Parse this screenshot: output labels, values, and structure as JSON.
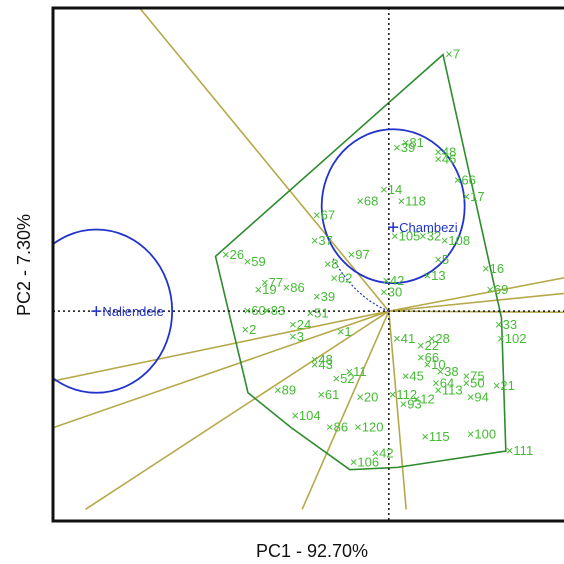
{
  "chart_data": {
    "type": "scatter",
    "subtype": "GGE biplot (which-won-where polygon view)",
    "title": "",
    "xlabel": "PC1 - 92.70%",
    "ylabel": "PC2 - 7.30%",
    "xlim": [
      -15.5,
      8.5
    ],
    "ylim": [
      -9.0,
      13.0
    ],
    "grid": false,
    "origin_lines": "dotted",
    "colors": {
      "genotype": "#44bb33",
      "environment": "#2233cc",
      "polygon": "#2e8b2e",
      "rays": "#b5a94a",
      "circle": "#2233cc",
      "axes": "#111111"
    },
    "environments": [
      {
        "name": "Naliendele",
        "x": -13.5,
        "y": 0.0
      },
      {
        "name": "Chambezi",
        "x": 0.2,
        "y": 3.6
      }
    ],
    "circles": [
      {
        "cx": -13.5,
        "cy": 0.0,
        "r": 3.5
      },
      {
        "cx": 0.2,
        "cy": 4.5,
        "r": 3.3
      }
    ],
    "polygon": [
      {
        "x": -8.0,
        "y": 2.35
      },
      {
        "x": 2.5,
        "y": 11.0
      },
      {
        "x": 5.2,
        "y": -0.3
      },
      {
        "x": 5.4,
        "y": -6.0
      },
      {
        "x": 0.4,
        "y": -6.7
      },
      {
        "x": -1.8,
        "y": -6.8
      },
      {
        "x": -4.5,
        "y": -5.0
      },
      {
        "x": -6.5,
        "y": -3.5
      }
    ],
    "rays_end": [
      {
        "x": -11.5,
        "y": 13.0
      },
      {
        "x": 8.5,
        "y": 1.5
      },
      {
        "x": 8.5,
        "y": 0.8
      },
      {
        "x": 8.5,
        "y": -0.05
      },
      {
        "x": -15.5,
        "y": -5.0
      },
      {
        "x": -15.5,
        "y": -3.0
      },
      {
        "x": -14.0,
        "y": -8.5
      },
      {
        "x": -4.0,
        "y": -8.5
      },
      {
        "x": 0.8,
        "y": -8.5
      }
    ],
    "genotypes": [
      {
        "label": "7",
        "x": 2.6,
        "y": 11.0
      },
      {
        "label": "81",
        "x": 0.6,
        "y": 7.2
      },
      {
        "label": "39",
        "x": 0.2,
        "y": 7.0
      },
      {
        "label": "48",
        "x": 2.1,
        "y": 6.8
      },
      {
        "label": "46",
        "x": 2.1,
        "y": 6.5
      },
      {
        "label": "66",
        "x": 3.0,
        "y": 5.6
      },
      {
        "label": "14",
        "x": -0.4,
        "y": 5.2
      },
      {
        "label": "17",
        "x": 3.4,
        "y": 4.9
      },
      {
        "label": "68",
        "x": -1.5,
        "y": 4.7
      },
      {
        "label": "118",
        "x": 0.4,
        "y": 4.7
      },
      {
        "label": "67",
        "x": -3.5,
        "y": 4.1
      },
      {
        "label": "37",
        "x": -3.6,
        "y": 3.0
      },
      {
        "label": "105",
        "x": 0.1,
        "y": 3.2
      },
      {
        "label": "32",
        "x": 1.4,
        "y": 3.2
      },
      {
        "label": "108",
        "x": 2.4,
        "y": 3.0
      },
      {
        "label": "26",
        "x": -7.7,
        "y": 2.4
      },
      {
        "label": "59",
        "x": -6.7,
        "y": 2.1
      },
      {
        "label": "97",
        "x": -1.9,
        "y": 2.4
      },
      {
        "label": "8",
        "x": -3.0,
        "y": 2.0
      },
      {
        "label": "5",
        "x": 2.1,
        "y": 2.2
      },
      {
        "label": "16",
        "x": 4.3,
        "y": 1.8
      },
      {
        "label": "13",
        "x": 1.6,
        "y": 1.5
      },
      {
        "label": "62",
        "x": -2.7,
        "y": 1.4
      },
      {
        "label": "42",
        "x": -0.3,
        "y": 1.3
      },
      {
        "label": "77",
        "x": -5.9,
        "y": 1.2
      },
      {
        "label": "86",
        "x": -4.9,
        "y": 1.0
      },
      {
        "label": "19",
        "x": -6.2,
        "y": 0.9
      },
      {
        "label": "30",
        "x": -0.4,
        "y": 0.8
      },
      {
        "label": "69",
        "x": 4.5,
        "y": 0.9
      },
      {
        "label": "39",
        "x": -3.5,
        "y": 0.6
      },
      {
        "label": "60",
        "x": -6.7,
        "y": 0.0
      },
      {
        "label": "83",
        "x": -5.8,
        "y": 0.0
      },
      {
        "label": "51",
        "x": -3.8,
        "y": -0.1
      },
      {
        "label": "2",
        "x": -6.8,
        "y": -0.8
      },
      {
        "label": "24",
        "x": -4.6,
        "y": -0.6
      },
      {
        "label": "3",
        "x": -4.6,
        "y": -1.1
      },
      {
        "label": "1",
        "x": -2.4,
        "y": -0.9
      },
      {
        "label": "33",
        "x": 4.9,
        "y": -0.6
      },
      {
        "label": "102",
        "x": 5.0,
        "y": -1.2
      },
      {
        "label": "41",
        "x": 0.2,
        "y": -1.2
      },
      {
        "label": "28",
        "x": 1.8,
        "y": -1.2
      },
      {
        "label": "22",
        "x": 1.3,
        "y": -1.5
      },
      {
        "label": "48",
        "x": -3.6,
        "y": -2.1
      },
      {
        "label": "43",
        "x": -3.6,
        "y": -2.3
      },
      {
        "label": "66",
        "x": 1.3,
        "y": -2.0
      },
      {
        "label": "10",
        "x": 1.6,
        "y": -2.3
      },
      {
        "label": "11",
        "x": -2.0,
        "y": -2.6
      },
      {
        "label": "52",
        "x": -2.6,
        "y": -2.9
      },
      {
        "label": "38",
        "x": 2.2,
        "y": -2.6
      },
      {
        "label": "45",
        "x": 0.6,
        "y": -2.8
      },
      {
        "label": "75",
        "x": 3.4,
        "y": -2.8
      },
      {
        "label": "64",
        "x": 2.0,
        "y": -3.1
      },
      {
        "label": "50",
        "x": 3.4,
        "y": -3.1
      },
      {
        "label": "21",
        "x": 4.8,
        "y": -3.2
      },
      {
        "label": "89",
        "x": -5.3,
        "y": -3.4
      },
      {
        "label": "61",
        "x": -3.3,
        "y": -3.6
      },
      {
        "label": "113",
        "x": 2.1,
        "y": -3.4
      },
      {
        "label": "20",
        "x": -1.5,
        "y": -3.7
      },
      {
        "label": "112",
        "x": 0.0,
        "y": -3.6
      },
      {
        "label": "12",
        "x": 1.1,
        "y": -3.8
      },
      {
        "label": "94",
        "x": 3.6,
        "y": -3.7
      },
      {
        "label": "93",
        "x": 0.5,
        "y": -4.0
      },
      {
        "label": "104",
        "x": -4.5,
        "y": -4.5
      },
      {
        "label": "86",
        "x": -2.9,
        "y": -5.0
      },
      {
        "label": "120",
        "x": -1.6,
        "y": -5.0
      },
      {
        "label": "115",
        "x": 1.5,
        "y": -5.4
      },
      {
        "label": "100",
        "x": 3.6,
        "y": -5.3
      },
      {
        "label": "111",
        "x": 5.4,
        "y": -6.0
      },
      {
        "label": "42",
        "x": -0.8,
        "y": -6.1
      },
      {
        "label": "106",
        "x": -1.8,
        "y": -6.5
      }
    ]
  }
}
